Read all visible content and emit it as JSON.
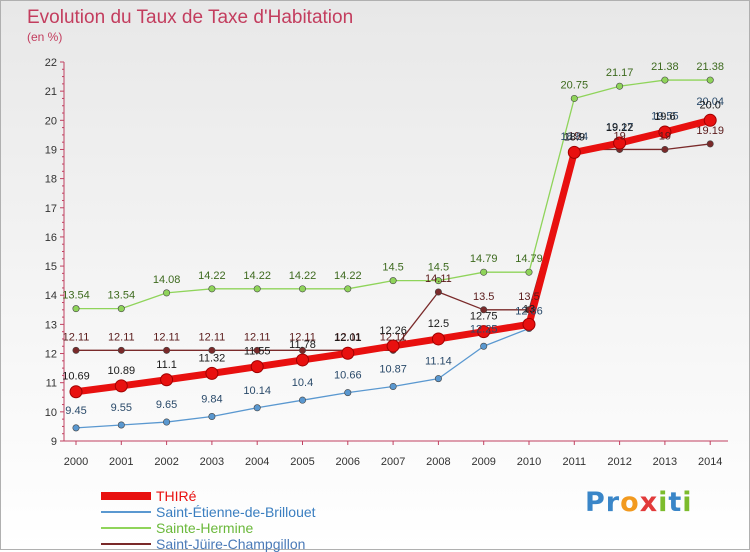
{
  "header": {
    "title": "Evolution du Taux de Taxe d'Habitation",
    "subtitle": "(en %)"
  },
  "logo": {
    "text": "Proxiti",
    "letters": [
      {
        "ch": "P",
        "color": "#3a86c8"
      },
      {
        "ch": "r",
        "color": "#3a86c8"
      },
      {
        "ch": "o",
        "color": "#f29a1f"
      },
      {
        "ch": "x",
        "color": "#e23a3a"
      },
      {
        "ch": "i",
        "color": "#7cbc2c"
      },
      {
        "ch": "t",
        "color": "#3a86c8"
      },
      {
        "ch": "i",
        "color": "#7cbc2c"
      }
    ]
  },
  "chart_data": {
    "type": "line",
    "title": "Evolution du Taux de Taxe d'Habitation",
    "ylabel": "(en %)",
    "xlabel": "",
    "x": [
      "2000",
      "2001",
      "2002",
      "2003",
      "2004",
      "2005",
      "2006",
      "2007",
      "2008",
      "2009",
      "2010",
      "2011",
      "2012",
      "2013",
      "2014"
    ],
    "ylim": [
      9,
      22
    ],
    "yticks": [
      9,
      10,
      11,
      12,
      13,
      14,
      15,
      16,
      17,
      18,
      19,
      20,
      21,
      22
    ],
    "grid": false,
    "legend_position": "bottom-left",
    "series": [
      {
        "name": "Saint-Jüire-Champgillon",
        "color": "#7a2a2a",
        "label_color": "#5a1a1a",
        "values": [
          12.11,
          12.11,
          12.11,
          12.11,
          12.11,
          12.11,
          12.11,
          12.11,
          14.11,
          13.5,
          13.5,
          19.0,
          19.0,
          19.0,
          19.19
        ],
        "labels": [
          "12.11",
          "12.11",
          "12.11",
          "12.11",
          "12.11",
          "12.11",
          "12.11",
          "12.11",
          "14.11",
          "13.5",
          "13.5",
          "19",
          "19",
          "19",
          "19.19"
        ]
      },
      {
        "name": "Sainte-Hermine",
        "color": "#8fd45a",
        "label_color": "#3d6a1e",
        "values": [
          13.54,
          13.54,
          14.08,
          14.22,
          14.22,
          14.22,
          14.22,
          14.5,
          14.5,
          14.79,
          14.79,
          20.75,
          21.17,
          21.38,
          21.38
        ],
        "labels": [
          "13.54",
          "13.54",
          "14.08",
          "14.22",
          "14.22",
          "14.22",
          "14.22",
          "14.5",
          "14.5",
          "14.79",
          "14.79",
          "20.75",
          "21.17",
          "21.38",
          "21.38"
        ]
      },
      {
        "name": "Saint-Étienne-de-Brillouet",
        "color": "#5a98d0",
        "label_color": "#2a4a6a",
        "values": [
          9.45,
          9.55,
          9.65,
          9.84,
          10.14,
          10.4,
          10.66,
          10.87,
          11.14,
          12.25,
          12.86,
          18.84,
          19.17,
          19.55,
          20.04
        ],
        "labels": [
          "9.45",
          "9.55",
          "9.65",
          "9.84",
          "10.14",
          "10.4",
          "10.66",
          "10.87",
          "11.14",
          "12.25",
          "12.86",
          "18.84",
          "19.17",
          "19.55",
          "20.04"
        ]
      },
      {
        "name": "THIRé",
        "color": "#e8100f",
        "label_color": "#1a1a1a",
        "values": [
          10.69,
          10.89,
          11.1,
          11.32,
          11.55,
          11.78,
          12.01,
          12.26,
          12.5,
          12.75,
          13.0,
          18.9,
          19.22,
          19.6,
          20.0
        ],
        "labels": [
          "10.69",
          "10.89",
          "11.1",
          "11.32",
          "11.55",
          "11.78",
          "12.01",
          "12.26",
          "12.5",
          "12.75",
          "13",
          "18.9",
          "19.22",
          "19.6",
          "20.0"
        ]
      }
    ]
  }
}
